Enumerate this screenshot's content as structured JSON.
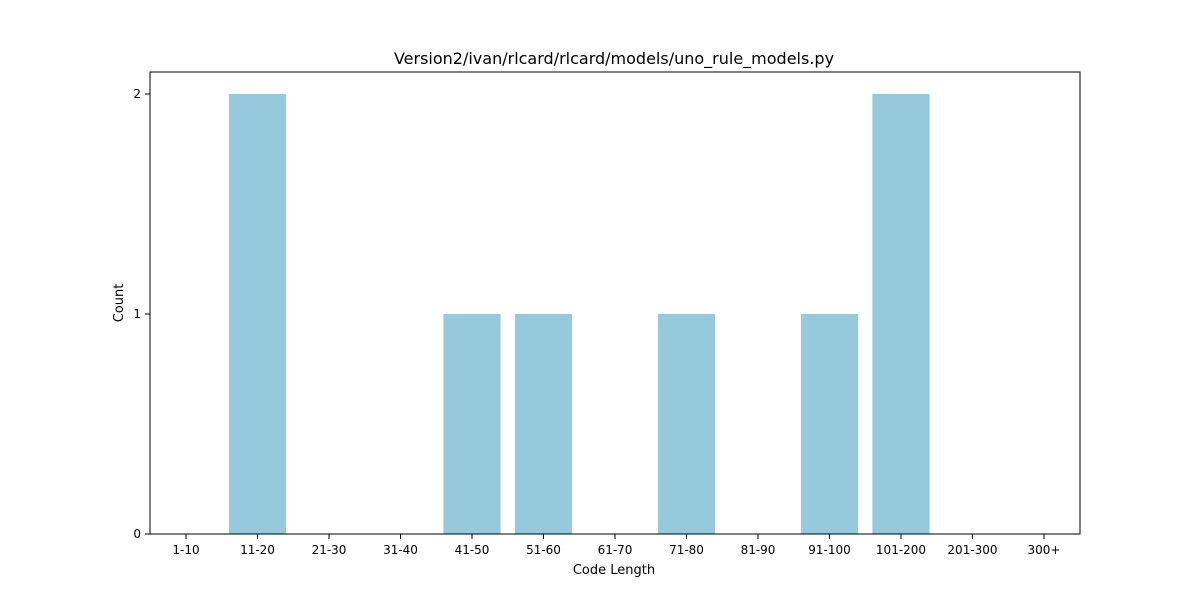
{
  "chart_data": {
    "type": "bar",
    "title": "Version2/ivan/rlcard/rlcard/models/uno_rule_models.py",
    "xlabel": "Code Length",
    "ylabel": "Count",
    "categories": [
      "1-10",
      "11-20",
      "21-30",
      "31-40",
      "41-50",
      "51-60",
      "61-70",
      "71-80",
      "81-90",
      "91-100",
      "101-200",
      "201-300",
      "300+"
    ],
    "values": [
      0,
      2,
      0,
      0,
      1,
      1,
      0,
      1,
      0,
      1,
      2,
      0,
      0
    ],
    "yticks": [
      0,
      1,
      2
    ],
    "ylim": [
      0,
      2.1
    ],
    "bar_color": "#96c9dc",
    "grid": false,
    "legend": "none"
  }
}
